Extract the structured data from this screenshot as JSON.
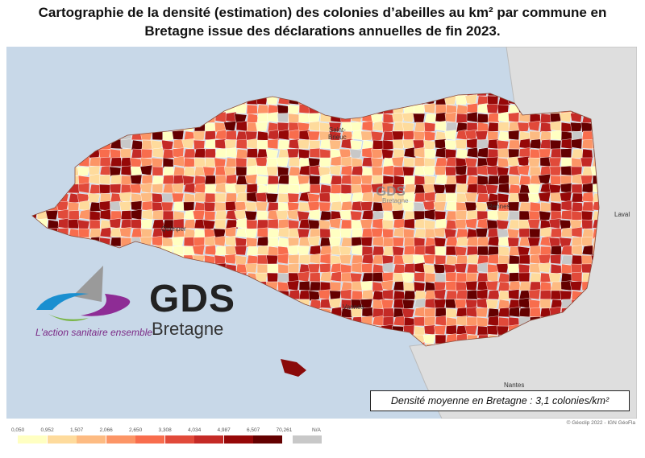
{
  "title": "Cartographie de la densité (estimation) des colonies d'abeilles au km² par commune en Bretagne issue des déclarations annuelles de fin 2023.",
  "title_lines": [
    "Cartographie de la densité (estimation) des colonies d’abeilles au km² par commune en",
    "Bretagne issue des déclarations annuelles de fin 2023."
  ],
  "cities": [
    "Saint-\nBrieuc",
    "Rennes",
    "Quimper",
    "Vannes",
    "Laval",
    "Nantes"
  ],
  "city_labels": {
    "saint_brieuc_1": "Saint-",
    "saint_brieuc_2": "Brieuc",
    "rennes": "Rennes",
    "quimper": "Quimper",
    "vannes": "Vannes",
    "laval": "Laval",
    "nantes": "Nantes"
  },
  "density_note": "Densité moyenne en Bretagne : 3,1 colonies/km²",
  "source": "© Géoclip 2022 - IGN GéoFla",
  "logo": {
    "name": "GDS",
    "region": "Bretagne",
    "tagline": "L'action sanitaire ensemble",
    "watermark": "GDS",
    "watermark_sub": "Bretagne"
  },
  "legend": {
    "breaks": [
      "0,050",
      "0,952",
      "1,507",
      "2,066",
      "2,650",
      "3,308",
      "4,034",
      "4,987",
      "6,507",
      "70,261"
    ],
    "na_label": "N/A",
    "colors": [
      "#ffffc2",
      "#fedb9c",
      "#fdbb82",
      "#fc9566",
      "#f86d4d",
      "#e14a3a",
      "#c42a26",
      "#960808",
      "#640000"
    ],
    "na_color": "#c8c8c8"
  },
  "colors": {
    "sea": "#c8d8e8",
    "outside_land": "#dedede"
  }
}
